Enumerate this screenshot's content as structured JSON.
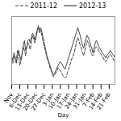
{
  "chart_data": {
    "type": "line",
    "xlabel": "Day",
    "categories": [
      "Nov",
      null,
      null,
      null,
      null,
      null,
      null,
      "6-Dec",
      null,
      null,
      null,
      null,
      null,
      null,
      "13-Dec",
      null,
      null,
      null,
      null,
      null,
      null,
      "20-Dec",
      null,
      null,
      null,
      null,
      null,
      null,
      "27-Dec",
      null,
      null,
      null,
      null,
      null,
      null,
      "3-Jan",
      null,
      null,
      null,
      null,
      null,
      null,
      "10-Jan",
      null,
      null,
      null,
      null,
      null,
      null,
      "17-Jan",
      null,
      null,
      null,
      null,
      null,
      null,
      "24-Jan",
      null,
      null,
      null,
      null,
      null,
      null,
      "31-Jan",
      null,
      null,
      null,
      null,
      null,
      null,
      "7-Feb",
      null,
      null,
      null,
      null,
      null,
      null,
      "14-Feb",
      null,
      null,
      null,
      null,
      null,
      null,
      "21-Feb",
      null,
      null,
      null,
      null,
      null
    ],
    "series": [
      {
        "name": "2011-12",
        "color": "#444444",
        "line_style": "dashed",
        "values": [
          3.5,
          2.8,
          4.2,
          3.6,
          3.0,
          4.5,
          3.8,
          2.5,
          3.2,
          4.0,
          5.0,
          4.5,
          3.8,
          4.8,
          5.5,
          5.2,
          4.6,
          5.8,
          6.5,
          6.0,
          5.5,
          6.2,
          7.0,
          7.5,
          6.8,
          7.2,
          6.5,
          5.8,
          5.0,
          4.5,
          3.8,
          3.2,
          2.8,
          2.2,
          1.8,
          1.4,
          1.0,
          1.2,
          1.5,
          1.8,
          2.2,
          2.0,
          1.8,
          1.5,
          1.2,
          1.0,
          0.8,
          1.0,
          1.5,
          2.0,
          2.5,
          3.0,
          3.5,
          3.8,
          4.2,
          5.0,
          5.8,
          6.2,
          5.8,
          5.2,
          4.8,
          4.2,
          3.8,
          4.5,
          5.2,
          5.8,
          5.5,
          5.0,
          4.5,
          4.0,
          3.8,
          4.2,
          4.8,
          5.0,
          4.8,
          4.5,
          4.2,
          4.0,
          3.8,
          3.5,
          3.2,
          3.0,
          3.2,
          3.5,
          3.8,
          4.0,
          3.8,
          3.5,
          3.2,
          3.0
        ]
      },
      {
        "name": "2012-13",
        "color": "#444444",
        "line_style": "solid",
        "values": [
          3.0,
          3.5,
          4.0,
          3.2,
          2.8,
          3.8,
          4.5,
          3.8,
          3.2,
          4.2,
          5.2,
          5.8,
          4.5,
          5.0,
          5.8,
          6.0,
          5.5,
          6.2,
          6.8,
          6.5,
          5.8,
          6.5,
          7.2,
          7.8,
          7.2,
          7.5,
          7.0,
          6.2,
          5.5,
          4.8,
          4.0,
          3.5,
          3.0,
          2.5,
          2.0,
          1.6,
          1.2,
          1.5,
          1.8,
          2.2,
          2.5,
          2.8,
          3.0,
          2.8,
          2.5,
          2.2,
          2.0,
          2.5,
          3.0,
          3.5,
          4.0,
          4.5,
          5.0,
          5.5,
          6.0,
          6.5,
          7.0,
          7.5,
          7.0,
          6.5,
          5.8,
          5.2,
          4.8,
          5.5,
          6.0,
          6.5,
          6.2,
          5.8,
          5.2,
          4.8,
          4.2,
          4.8,
          5.5,
          5.8,
          5.5,
          5.0,
          4.8,
          4.5,
          4.2,
          4.0,
          3.8,
          3.5,
          3.8,
          4.0,
          4.2,
          4.5,
          4.2,
          4.0,
          3.8,
          3.5
        ]
      }
    ],
    "ylim": [
      0,
      9
    ],
    "tick_labels": "x",
    "legend": "top"
  }
}
